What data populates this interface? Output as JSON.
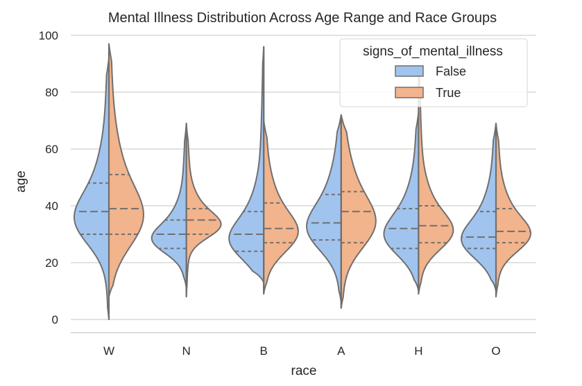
{
  "chart_data": {
    "type": "violin",
    "split": true,
    "title": "Mental Illness Distribution Across Age Range and Race Groups",
    "xlabel": "race",
    "ylabel": "age",
    "ylim": [
      0,
      100
    ],
    "y_ticks": [
      0,
      20,
      40,
      60,
      80,
      100
    ],
    "grid": "horizontal",
    "categories": [
      "W",
      "N",
      "B",
      "A",
      "H",
      "O"
    ],
    "legend": {
      "title": "signs_of_mental_illness",
      "placement": "top-right",
      "entries": [
        "False",
        "True"
      ]
    },
    "colors": {
      "False": "#a1c4ef",
      "True": "#f2b48c",
      "outline": "#6f6f6f",
      "grid": "#d0d0d0"
    },
    "series": [
      {
        "name": "False",
        "ranges": [
          [
            0,
            92
          ],
          [
            11,
            69
          ],
          [
            13,
            96
          ],
          [
            6,
            72
          ],
          [
            10,
            73
          ],
          [
            10,
            69
          ]
        ],
        "quartiles": [
          [
            30,
            38,
            48
          ],
          [
            25,
            30,
            35
          ],
          [
            24,
            30,
            38
          ],
          [
            28,
            34,
            44
          ],
          [
            25,
            32,
            39
          ],
          [
            25,
            29,
            38
          ]
        ]
      },
      {
        "name": "True",
        "ranges": [
          [
            8,
            97
          ],
          [
            8,
            69
          ],
          [
            9,
            70
          ],
          [
            4,
            72
          ],
          [
            9,
            89
          ],
          [
            8,
            69
          ]
        ],
        "quartiles": [
          [
            30,
            39,
            51
          ],
          [
            30,
            35,
            39
          ],
          [
            27,
            32,
            41
          ],
          [
            27,
            38,
            45
          ],
          [
            27,
            33,
            40
          ],
          [
            27,
            31,
            39
          ]
        ]
      }
    ]
  }
}
